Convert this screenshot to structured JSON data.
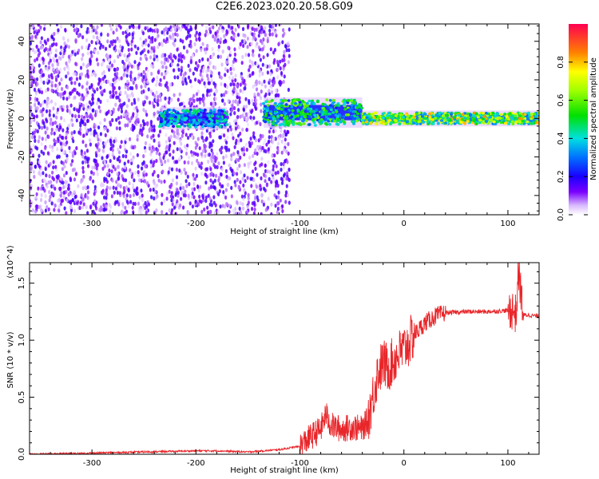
{
  "title": "C2E6.2023.020.20.58.G09",
  "colors": {
    "snr_line": "#e8262a",
    "spectrogram_low": "#5a00ff",
    "spectrogram_high": "#ff0030"
  },
  "chart_data": [
    {
      "type": "heatmap",
      "name": "spectrogram",
      "xlabel": "Height of straight line (km)",
      "ylabel": "Frequency (Hz)",
      "xlim": [
        -360,
        130
      ],
      "ylim": [
        -50,
        49
      ],
      "xticks": [
        -300,
        -200,
        -100,
        0,
        100
      ],
      "yticks": [
        -40,
        -20,
        0,
        20,
        40
      ],
      "colorbar": {
        "label": "Normalized spectral amplitude",
        "range": [
          0.0,
          1.0
        ],
        "ticks": [
          "0.0",
          "0.2",
          "0.4",
          "0.6",
          "0.8"
        ],
        "tick_values": [
          0.0,
          0.2,
          0.4,
          0.6,
          0.8
        ]
      },
      "features": [
        {
          "height_range": [
            -360,
            -110
          ],
          "description": "broadband noise",
          "amplitude": 0.1
        },
        {
          "height_range": [
            -235,
            -170
          ],
          "freq_center": 0,
          "amplitude": 0.35
        },
        {
          "height_range": [
            -135,
            -40
          ],
          "freq_center": 3,
          "amplitude": 0.45
        },
        {
          "height_range": [
            -40,
            130
          ],
          "freq_center": 0,
          "amplitude": 0.6
        }
      ]
    },
    {
      "type": "line",
      "name": "snr",
      "xlabel": "Height of straight line (km)",
      "ylabel": "SNR (10 * v/v)",
      "yscale_note": "(x10^4)",
      "xlim": [
        -360,
        130
      ],
      "ylim": [
        0,
        1.68
      ],
      "xticks": [
        -300,
        -200,
        -100,
        0,
        100
      ],
      "yticks": [
        "0.0",
        "0.5",
        "1.0",
        "1.5"
      ],
      "ytick_values": [
        0.0,
        0.5,
        1.0,
        1.5
      ],
      "series": [
        {
          "x": [
            -360,
            -300,
            -250,
            -200,
            -180,
            -150,
            -120,
            -100,
            -90,
            -80,
            -75,
            -70,
            -60,
            -50,
            -40,
            -35,
            -30,
            -25,
            -20,
            -15,
            -10,
            -5,
            0,
            5,
            10,
            15,
            20,
            30,
            40,
            60,
            80,
            100,
            105,
            108,
            110,
            115,
            120,
            130
          ],
          "y": [
            0.0,
            0.01,
            0.02,
            0.03,
            0.03,
            0.02,
            0.04,
            0.07,
            0.15,
            0.22,
            0.35,
            0.25,
            0.22,
            0.24,
            0.22,
            0.3,
            0.5,
            0.72,
            0.8,
            0.76,
            0.82,
            0.88,
            0.92,
            0.98,
            1.05,
            1.1,
            1.15,
            1.21,
            1.24,
            1.25,
            1.25,
            1.26,
            1.27,
            1.22,
            1.62,
            1.22,
            1.22,
            1.21
          ]
        }
      ]
    }
  ]
}
